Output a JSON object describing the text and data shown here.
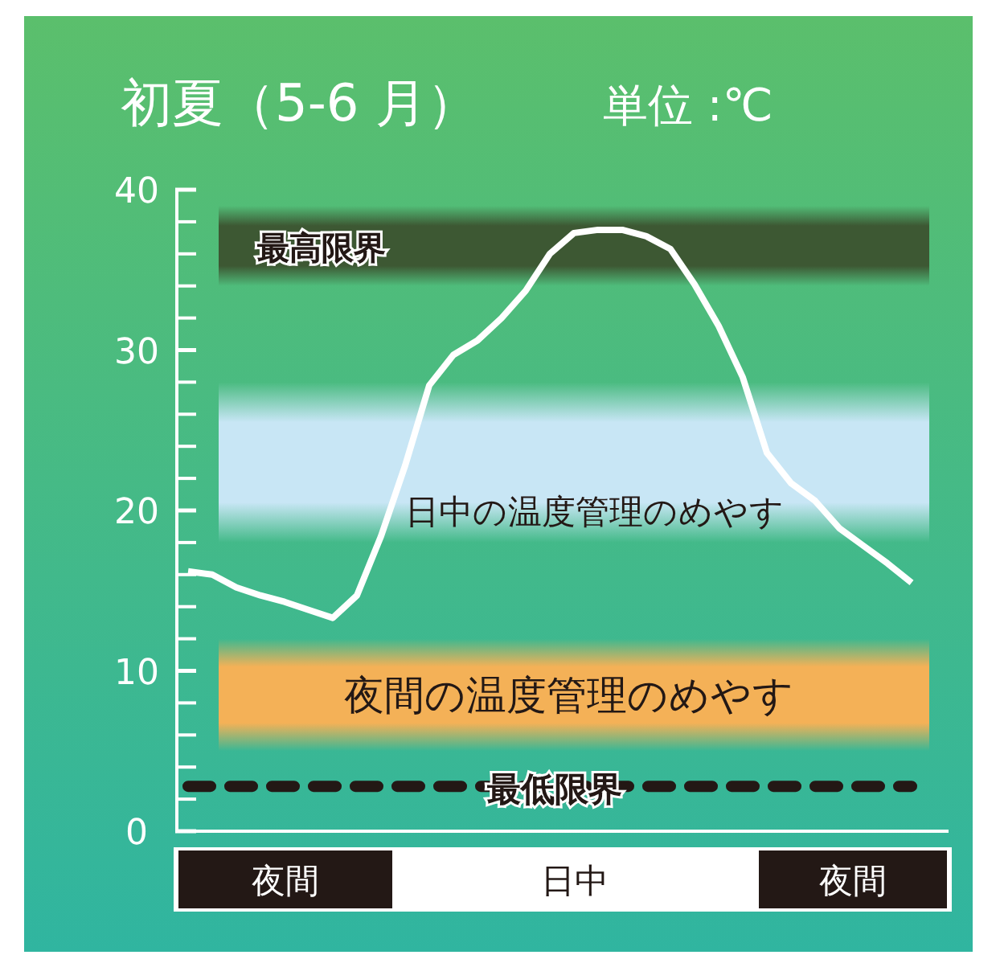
{
  "chart_data": {
    "type": "line",
    "title": "初夏（5-6 月）",
    "subtitle": "単位 :℃",
    "categories": [
      null,
      null,
      null,
      null,
      null,
      null,
      null,
      null,
      null,
      null,
      null,
      null,
      null,
      null,
      null,
      null,
      null,
      null,
      null,
      null,
      null,
      null,
      null,
      null,
      null,
      null,
      null,
      null,
      null,
      null,
      null
    ],
    "series": [
      {
        "color": "#ffffff",
        "values": [
          16.2,
          16.0,
          15.2,
          14.7,
          14.3,
          13.8,
          13.3,
          14.7,
          18.4,
          22.8,
          27.8,
          29.7,
          30.6,
          32.0,
          33.7,
          36.0,
          37.3,
          37.5,
          37.5,
          37.1,
          36.3,
          34.1,
          31.5,
          28.3,
          23.6,
          21.7,
          20.6,
          18.9,
          17.8,
          16.7,
          15.5
        ]
      }
    ],
    "ylim": [
      0,
      40
    ],
    "yticks": [
      0,
      10,
      20,
      30,
      40
    ],
    "bands": [
      {
        "axis": "y",
        "from": 34,
        "to": 39,
        "label": "最高限界",
        "color": "#3d5833"
      },
      {
        "axis": "y",
        "from": 18,
        "to": 28,
        "label": "日中の温度管理のめやす",
        "color": "#c8e6f5"
      },
      {
        "axis": "y",
        "from": 5,
        "to": 12,
        "label": "夜間の温度管理のめやす",
        "color": "#f4b157"
      }
    ],
    "ref_lines": [
      {
        "axis": "y",
        "value": 2.8,
        "label": "最低限界",
        "color": "#231815",
        "line_style": "dashed"
      }
    ],
    "annotations": [
      "夜間",
      "日中",
      "夜間"
    ],
    "grid": false,
    "marker": "none",
    "line_style": "solid"
  }
}
